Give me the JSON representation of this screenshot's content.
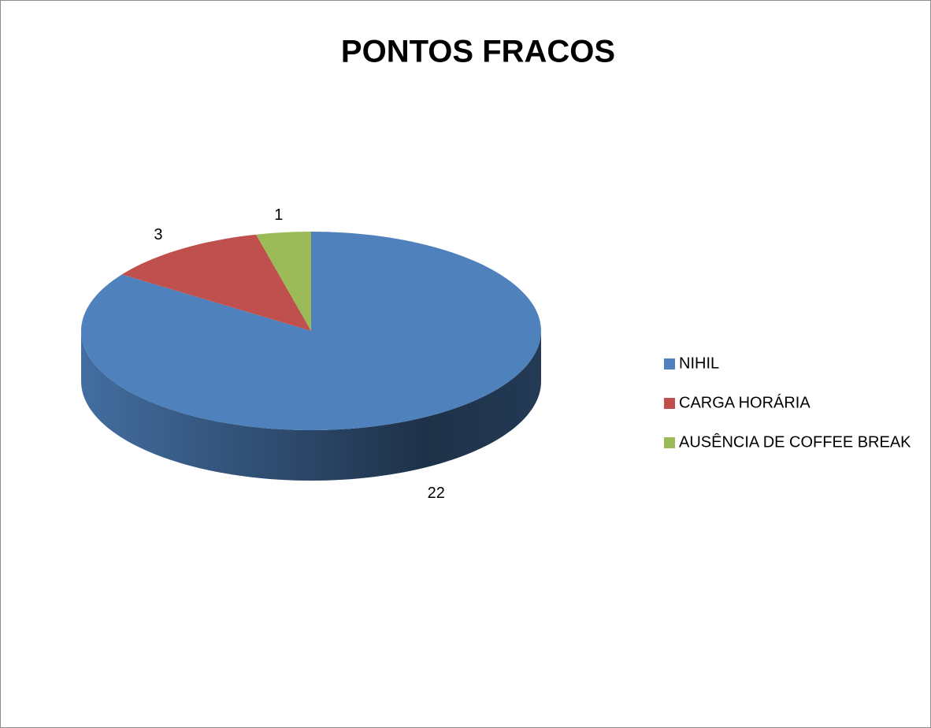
{
  "chart_data": {
    "type": "pie",
    "title": "PONTOS FRACOS",
    "categories": [
      "NIHIL",
      "CARGA HORÁRIA",
      "AUSÊNCIA DE COFFEE BREAK"
    ],
    "values": [
      22,
      3,
      1
    ],
    "colors": [
      "#4f81bd",
      "#c0504d",
      "#9bbb59"
    ],
    "legend": "right"
  }
}
